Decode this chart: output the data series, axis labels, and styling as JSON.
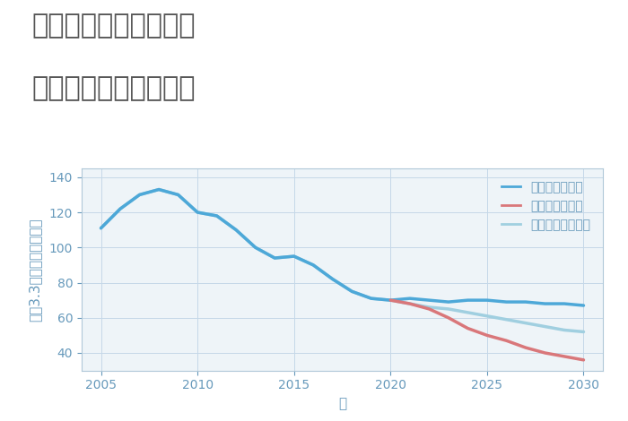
{
  "title_line1": "奈良県天理市岸田町の",
  "title_line2": "中古戸建ての価格推移",
  "xlabel": "年",
  "ylabel": "坪（3.3㎡）単価（万円）",
  "ylim": [
    30,
    145
  ],
  "yticks": [
    40,
    60,
    80,
    100,
    120,
    140
  ],
  "xlim": [
    2004,
    2031
  ],
  "xticks": [
    2005,
    2010,
    2015,
    2020,
    2025,
    2030
  ],
  "background_color": "#ffffff",
  "plot_background": "#eef4f8",
  "grid_color": "#c5d8e8",
  "good_scenario": {
    "label": "グッドシナリオ",
    "color": "#4da8d8",
    "linewidth": 2.5,
    "x": [
      2005,
      2006,
      2007,
      2008,
      2009,
      2010,
      2011,
      2012,
      2013,
      2014,
      2015,
      2016,
      2017,
      2018,
      2019,
      2020,
      2021,
      2022,
      2023,
      2024,
      2025,
      2026,
      2027,
      2028,
      2029,
      2030
    ],
    "y": [
      111,
      122,
      130,
      133,
      130,
      120,
      118,
      110,
      100,
      94,
      95,
      90,
      82,
      75,
      71,
      70,
      71,
      70,
      69,
      70,
      70,
      69,
      69,
      68,
      68,
      67
    ]
  },
  "bad_scenario": {
    "label": "バッドシナリオ",
    "color": "#d9777a",
    "linewidth": 2.5,
    "x": [
      2020,
      2021,
      2022,
      2023,
      2024,
      2025,
      2026,
      2027,
      2028,
      2029,
      2030
    ],
    "y": [
      70,
      68,
      65,
      60,
      54,
      50,
      47,
      43,
      40,
      38,
      36
    ]
  },
  "normal_scenario": {
    "label": "ノーマルシナリオ",
    "color": "#a0cfe0",
    "linewidth": 2.5,
    "x": [
      2005,
      2006,
      2007,
      2008,
      2009,
      2010,
      2011,
      2012,
      2013,
      2014,
      2015,
      2016,
      2017,
      2018,
      2019,
      2020,
      2021,
      2022,
      2023,
      2024,
      2025,
      2026,
      2027,
      2028,
      2029,
      2030
    ],
    "y": [
      111,
      122,
      130,
      133,
      130,
      120,
      118,
      110,
      100,
      94,
      95,
      90,
      82,
      75,
      71,
      70,
      68,
      66,
      65,
      63,
      61,
      59,
      57,
      55,
      53,
      52
    ]
  },
  "title_fontsize": 22,
  "axis_label_fontsize": 11,
  "tick_fontsize": 10,
  "legend_fontsize": 10,
  "title_color": "#555555",
  "tick_color": "#6699bb",
  "spine_color": "#b0c8d8"
}
